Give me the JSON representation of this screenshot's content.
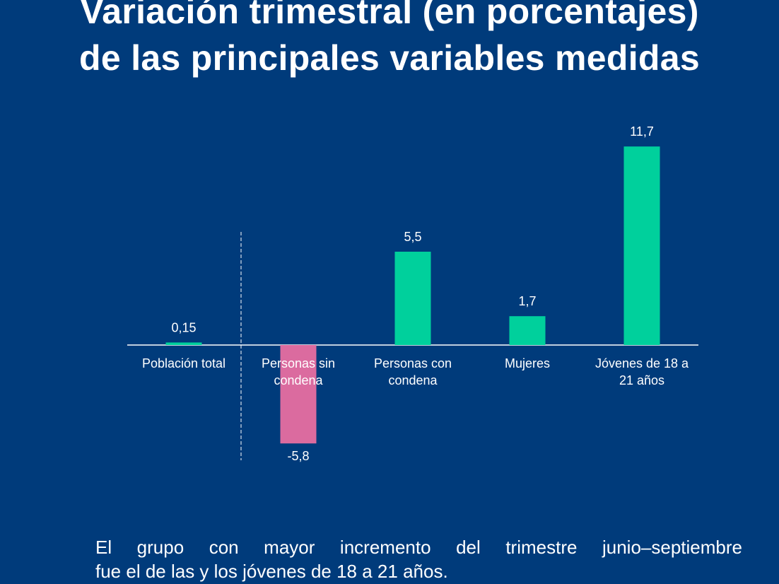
{
  "title": {
    "line1": "Variación trimestral (en porcentajes)",
    "line2": "de las principales variables medidas"
  },
  "footnote": {
    "line1": "El grupo con mayor incremento del trimestre junio–septiembre",
    "line2": "fue el de las y los jóvenes de 18 a 21 años."
  },
  "colors": {
    "background": "#003b7b",
    "positive": "#00d09c",
    "negative": "#db6b9f",
    "text": "#ffffff"
  },
  "chart_data": {
    "type": "bar",
    "title": "Variación trimestral (en porcentajes) de las principales variables medidas",
    "xlabel": "",
    "ylabel": "",
    "categories": [
      [
        "Población total"
      ],
      [
        "Personas sin",
        "condena"
      ],
      [
        "Personas con",
        "condena"
      ],
      [
        "Mujeres"
      ],
      [
        "Jóvenes de 18 a",
        "21 años"
      ]
    ],
    "values": [
      0.15,
      -5.8,
      5.5,
      1.7,
      11.7
    ],
    "value_labels": [
      "0,15",
      "-5,8",
      "5,5",
      "1,7",
      "11,7"
    ],
    "ylim": [
      -5.8,
      11.7
    ],
    "grid": false,
    "legend": "none",
    "separator_after_category": 0
  }
}
